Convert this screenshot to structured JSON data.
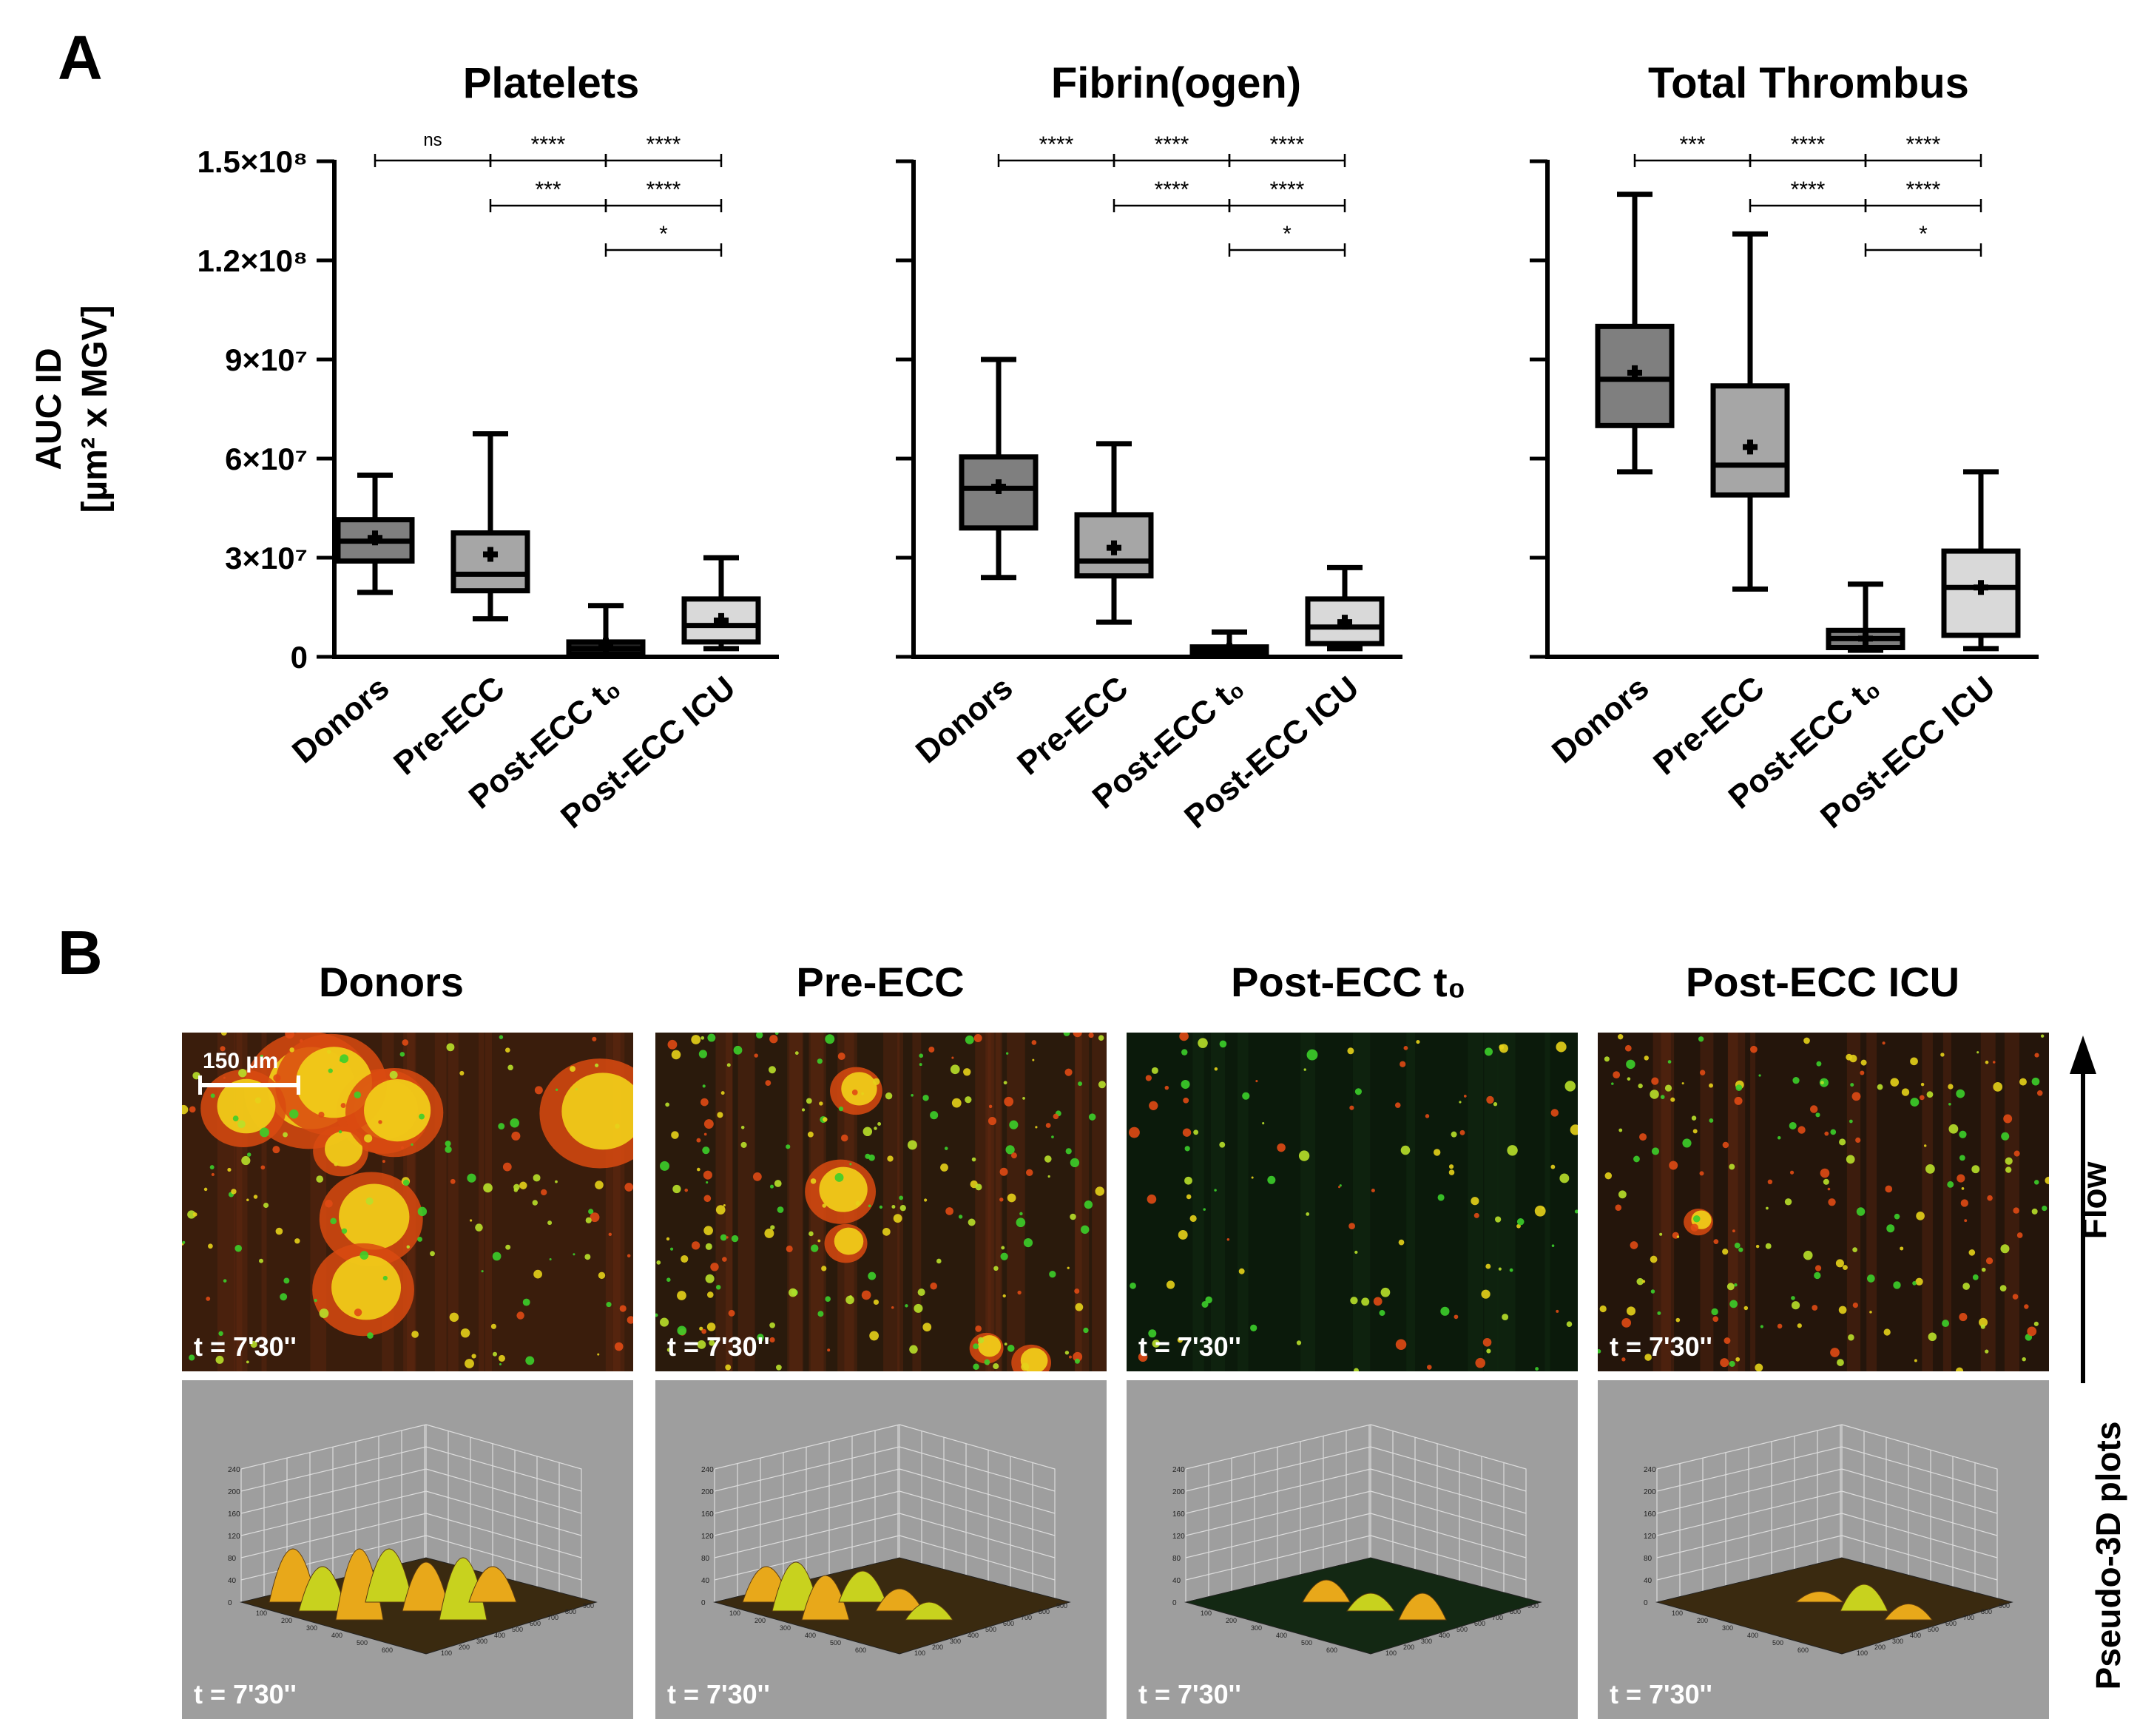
{
  "panel_a_label": "A",
  "panel_b_label": "B",
  "chart_data": [
    {
      "type": "box",
      "title": "Platelets",
      "ylabel_line1": "AUC ID",
      "ylabel_line2": "[µm² x MGV]",
      "ylim": [
        0,
        150000000
      ],
      "yticks": [
        0,
        30000000,
        60000000,
        90000000,
        120000000,
        150000000
      ],
      "ytick_labels": [
        "0",
        "3×10⁷",
        "6×10⁷",
        "9×10⁷",
        "1.2×10⁸",
        "1.5×10⁸"
      ],
      "categories": [
        "Donors",
        "Pre-ECC",
        "Post-ECC t₀",
        "Post-ECC ICU"
      ],
      "boxes": [
        {
          "min": 19500000,
          "q1": 29000000,
          "median": 35000000,
          "q3": 41500000,
          "max": 55000000,
          "mean": 36000000,
          "color": "#7f7f7f"
        },
        {
          "min": 11500000,
          "q1": 20000000,
          "median": 25000000,
          "q3": 37500000,
          "max": 67500000,
          "mean": 31000000,
          "color": "#a6a6a6"
        },
        {
          "min": 500000,
          "q1": 800000,
          "median": 2500000,
          "q3": 4500000,
          "max": 15500000,
          "mean": 3500000,
          "color": "#262626"
        },
        {
          "min": 2500000,
          "q1": 4500000,
          "median": 9500000,
          "q3": 17500000,
          "max": 30000000,
          "mean": 11000000,
          "color": "#d9d9d9"
        }
      ],
      "significance": [
        {
          "from": 0,
          "to": 1,
          "level": 0,
          "label": "ns"
        },
        {
          "from": 1,
          "to": 2,
          "level": 0,
          "label": "****"
        },
        {
          "from": 2,
          "to": 3,
          "level": 0,
          "label": "****"
        },
        {
          "from": 1,
          "to": 2,
          "level": 1,
          "label": "***"
        },
        {
          "from": 2,
          "to": 3,
          "level": 1,
          "label": "****"
        },
        {
          "from": 2,
          "to": 3,
          "level": 2,
          "label": "*"
        }
      ]
    },
    {
      "type": "box",
      "title": "Fibrin(ogen)",
      "ylim": [
        0,
        150000000
      ],
      "yticks": [
        0,
        30000000,
        60000000,
        90000000,
        120000000,
        150000000
      ],
      "categories": [
        "Donors",
        "Pre-ECC",
        "Post-ECC t₀",
        "Post-ECC ICU"
      ],
      "boxes": [
        {
          "min": 24000000,
          "q1": 39000000,
          "median": 51000000,
          "q3": 60500000,
          "max": 90000000,
          "mean": 51500000,
          "color": "#7f7f7f"
        },
        {
          "min": 10500000,
          "q1": 24500000,
          "median": 29000000,
          "q3": 43000000,
          "max": 64500000,
          "mean": 33000000,
          "color": "#a6a6a6"
        },
        {
          "min": 300000,
          "q1": 600000,
          "median": 1500000,
          "q3": 3000000,
          "max": 7500000,
          "mean": 2000000,
          "color": "#262626"
        },
        {
          "min": 2500000,
          "q1": 4000000,
          "median": 9000000,
          "q3": 17500000,
          "max": 27000000,
          "mean": 10500000,
          "color": "#d9d9d9"
        }
      ],
      "significance": [
        {
          "from": 0,
          "to": 1,
          "level": 0,
          "label": "****"
        },
        {
          "from": 1,
          "to": 2,
          "level": 0,
          "label": "****"
        },
        {
          "from": 2,
          "to": 3,
          "level": 0,
          "label": "****"
        },
        {
          "from": 1,
          "to": 2,
          "level": 1,
          "label": "****"
        },
        {
          "from": 2,
          "to": 3,
          "level": 1,
          "label": "****"
        },
        {
          "from": 2,
          "to": 3,
          "level": 2,
          "label": "*"
        }
      ]
    },
    {
      "type": "box",
      "title": "Total Thrombus",
      "ylim": [
        0,
        150000000
      ],
      "yticks": [
        0,
        30000000,
        60000000,
        90000000,
        120000000,
        150000000
      ],
      "categories": [
        "Donors",
        "Pre-ECC",
        "Post-ECC t₀",
        "Post-ECC ICU"
      ],
      "boxes": [
        {
          "min": 56000000,
          "q1": 70000000,
          "median": 84000000,
          "q3": 100000000,
          "max": 140000000,
          "mean": 86000000,
          "color": "#7f7f7f"
        },
        {
          "min": 20500000,
          "q1": 49000000,
          "median": 58000000,
          "q3": 82000000,
          "max": 128000000,
          "mean": 63500000,
          "color": "#a6a6a6"
        },
        {
          "min": 2000000,
          "q1": 2800000,
          "median": 5500000,
          "q3": 8000000,
          "max": 22000000,
          "mean": 5500000,
          "color": "#7f7f7f"
        },
        {
          "min": 2500000,
          "q1": 6500000,
          "median": 21000000,
          "q3": 32000000,
          "max": 56000000,
          "mean": 21000000,
          "color": "#d9d9d9"
        }
      ],
      "significance": [
        {
          "from": 0,
          "to": 1,
          "level": 0,
          "label": "***"
        },
        {
          "from": 1,
          "to": 2,
          "level": 0,
          "label": "****"
        },
        {
          "from": 2,
          "to": 3,
          "level": 0,
          "label": "****"
        },
        {
          "from": 1,
          "to": 2,
          "level": 1,
          "label": "****"
        },
        {
          "from": 2,
          "to": 3,
          "level": 1,
          "label": "****"
        },
        {
          "from": 2,
          "to": 3,
          "level": 2,
          "label": "*"
        }
      ]
    }
  ],
  "images": {
    "columns": [
      "Donors",
      "Pre-ECC",
      "Post-ECC t₀",
      "Post-ECC ICU"
    ],
    "time_label": "t = 7'30''",
    "scale_bar_label": "150 µm",
    "flow_label": "Flow",
    "plots_label": "Pseudo-3D plots",
    "plot_axis_z_ticks": [
      "0",
      "40",
      "80",
      "120",
      "160",
      "200",
      "240"
    ],
    "plot_axis_x_ticks": [
      "100",
      "200",
      "300",
      "400",
      "500",
      "600",
      "700",
      "800",
      "900"
    ],
    "plot_axis_y_ticks": [
      "100",
      "200",
      "300",
      "400",
      "500",
      "600"
    ]
  }
}
